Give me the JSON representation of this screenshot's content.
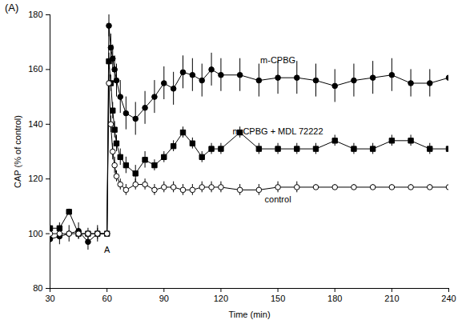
{
  "chart_data": {
    "type": "line",
    "title": "(A)",
    "x_label": "Time (min)",
    "y_label": "CAP (% of control)",
    "xlim": [
      30,
      240
    ],
    "xticks": [
      30,
      60,
      90,
      120,
      150,
      180,
      210,
      240
    ],
    "ylim": [
      80,
      180
    ],
    "yticks": [
      80,
      100,
      120,
      140,
      160,
      180
    ],
    "grid": false,
    "x": [
      30,
      35,
      40,
      45,
      50,
      55,
      60,
      61,
      62,
      63,
      64,
      65,
      67,
      70,
      75,
      80,
      85,
      90,
      95,
      100,
      105,
      110,
      115,
      120,
      130,
      140,
      150,
      160,
      170,
      180,
      190,
      200,
      210,
      220,
      230,
      240
    ],
    "series": [
      {
        "name": "m-CPBG",
        "color": "#000000",
        "marker": "circle",
        "values": [
          98,
          99,
          100,
          101,
          97,
          100,
          100,
          176,
          168,
          164,
          160,
          156,
          150,
          144,
          142,
          146,
          150,
          155,
          153,
          159,
          158,
          156,
          160,
          158,
          158,
          156,
          157,
          157,
          156,
          154,
          156,
          157,
          158,
          155,
          155,
          157
        ],
        "errors": [
          3,
          3,
          3,
          3,
          3,
          3,
          1,
          4,
          5,
          5,
          5,
          6,
          6,
          6,
          6,
          6,
          6,
          6,
          6,
          6,
          6,
          6,
          6,
          6,
          6,
          6,
          6,
          6,
          6,
          6,
          6,
          6,
          6,
          5,
          5,
          5
        ]
      },
      {
        "name": "m-CPBG + MDL 72222",
        "color": "#000000",
        "marker": "square",
        "values": [
          102,
          102,
          108,
          100,
          100,
          100,
          100,
          163,
          155,
          145,
          138,
          133,
          128,
          125,
          122,
          127,
          125,
          128,
          132,
          137,
          133,
          128,
          131,
          131,
          137,
          131,
          131,
          131,
          131,
          134,
          131,
          131,
          134,
          134,
          131,
          131
        ],
        "errors": [
          2,
          2,
          1,
          2,
          2,
          2,
          1,
          3,
          3,
          3,
          3,
          3,
          3,
          3,
          3,
          3,
          2,
          2,
          2,
          2,
          2,
          2,
          2,
          2,
          2,
          2,
          2,
          2,
          2,
          2,
          2,
          2,
          2,
          2,
          2,
          2
        ]
      },
      {
        "name": "control",
        "color": "#000000",
        "marker": "open-circle",
        "values": [
          100,
          100,
          100,
          100,
          100,
          100,
          100,
          155,
          140,
          130,
          125,
          121,
          118,
          116,
          118,
          118,
          116,
          117,
          117,
          116,
          116,
          117,
          117,
          117,
          116,
          116,
          117,
          117,
          117,
          117,
          117,
          117,
          117,
          117,
          117,
          117
        ],
        "errors": [
          1,
          1,
          1,
          1,
          1,
          1,
          1,
          3,
          3,
          3,
          3,
          2,
          2,
          2,
          2,
          2,
          2,
          2,
          2,
          2,
          2,
          2,
          2,
          2,
          2,
          2,
          2,
          2,
          1,
          1,
          1,
          1,
          1,
          1,
          1,
          1
        ]
      }
    ],
    "annotations": [
      {
        "text": "A",
        "x": 60,
        "y": 94
      }
    ]
  }
}
